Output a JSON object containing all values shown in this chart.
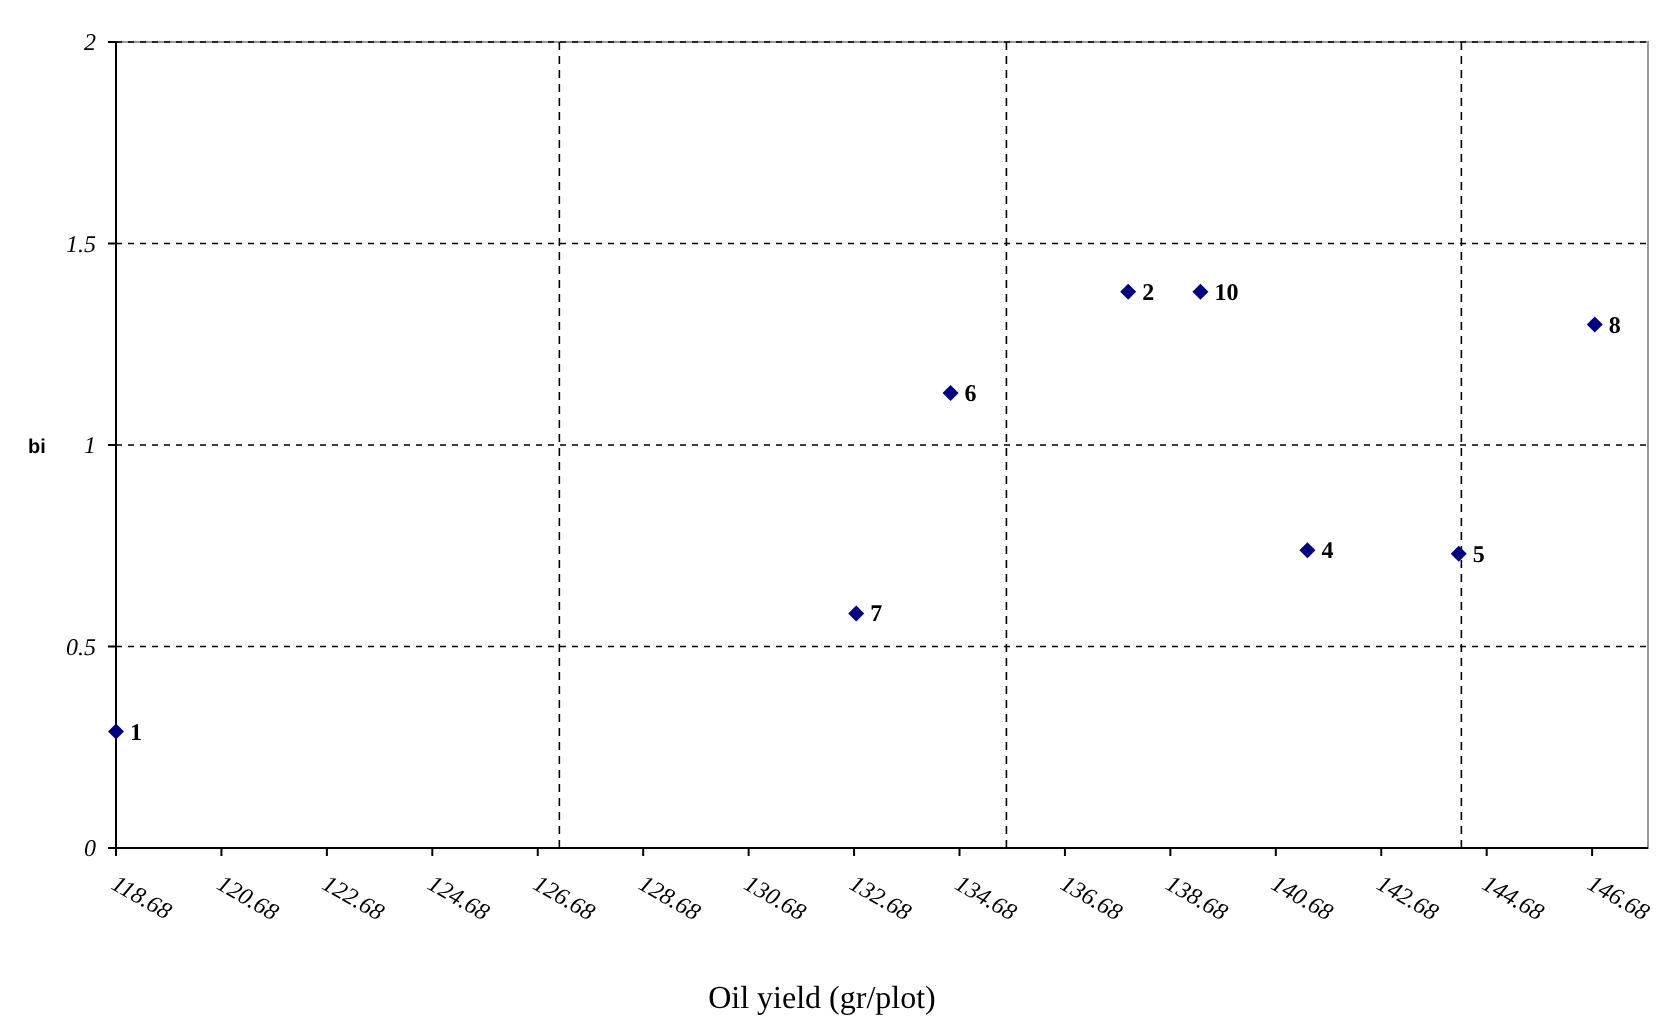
{
  "chart_data": {
    "type": "scatter",
    "xlabel": "Oil yield (gr/plot)",
    "ylabel": "bi",
    "x": [
      118.68,
      137.88,
      141.28,
      144.15,
      134.51,
      132.72,
      146.73,
      139.25
    ],
    "series": [
      {
        "color": "#000080",
        "values": [
          0.289,
          1.38,
          0.739,
          0.73,
          1.129,
          0.582,
          1.299,
          1.38
        ]
      }
    ],
    "annotations": [
      {
        "text": "1",
        "x": 118.68,
        "y": 0.289
      },
      {
        "text": "2",
        "x": 137.88,
        "y": 1.38
      },
      {
        "text": "4",
        "x": 141.28,
        "y": 0.739
      },
      {
        "text": "5",
        "x": 144.15,
        "y": 0.73
      },
      {
        "text": "6",
        "x": 134.51,
        "y": 1.129
      },
      {
        "text": "7",
        "x": 132.72,
        "y": 0.582
      },
      {
        "text": "8",
        "x": 146.73,
        "y": 1.299
      },
      {
        "text": "10",
        "x": 139.25,
        "y": 1.38
      }
    ],
    "xlim": [
      118.68,
      147.74
    ],
    "xticks": [
      118.68,
      120.68,
      122.68,
      124.68,
      126.68,
      128.68,
      130.68,
      132.68,
      134.68,
      136.68,
      138.68,
      140.68,
      142.68,
      144.68,
      146.68
    ],
    "ylim": [
      0,
      2
    ],
    "yticks": [
      0,
      0.5,
      1,
      1.5,
      2
    ],
    "grid": "y",
    "marker": "diamond",
    "ref_lines": [
      {
        "axis": "x",
        "value": 127.09,
        "line_style": "dashed"
      },
      {
        "axis": "x",
        "value": 135.57,
        "line_style": "dashed"
      },
      {
        "axis": "x",
        "value": 144.2,
        "line_style": "dashed"
      }
    ]
  }
}
